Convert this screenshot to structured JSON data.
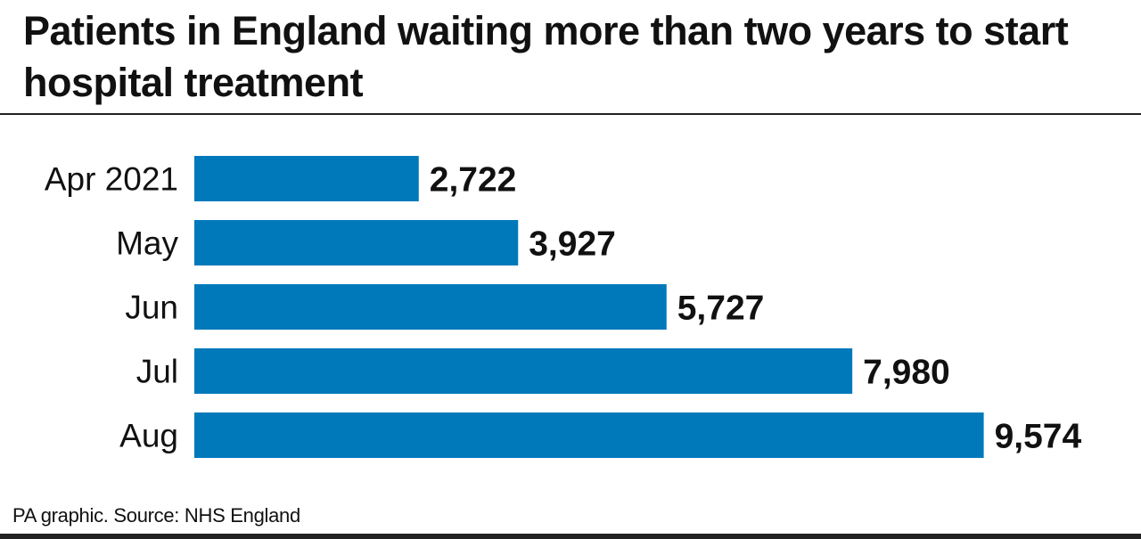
{
  "chart_data": {
    "type": "bar",
    "orientation": "horizontal",
    "title": "Patients in England waiting more than two years to start hospital treatment",
    "categories": [
      "Apr 2021",
      "May",
      "Jun",
      "Jul",
      "Aug"
    ],
    "values": [
      2722,
      3927,
      5727,
      7980,
      9574
    ],
    "data_labels": [
      "2,722",
      "3,927",
      "5,727",
      "7,980",
      "9,574"
    ],
    "xlabel": "",
    "ylabel": "",
    "grid": false,
    "bar_color": "#0079bb"
  },
  "source": "PA graphic. Source: NHS England"
}
